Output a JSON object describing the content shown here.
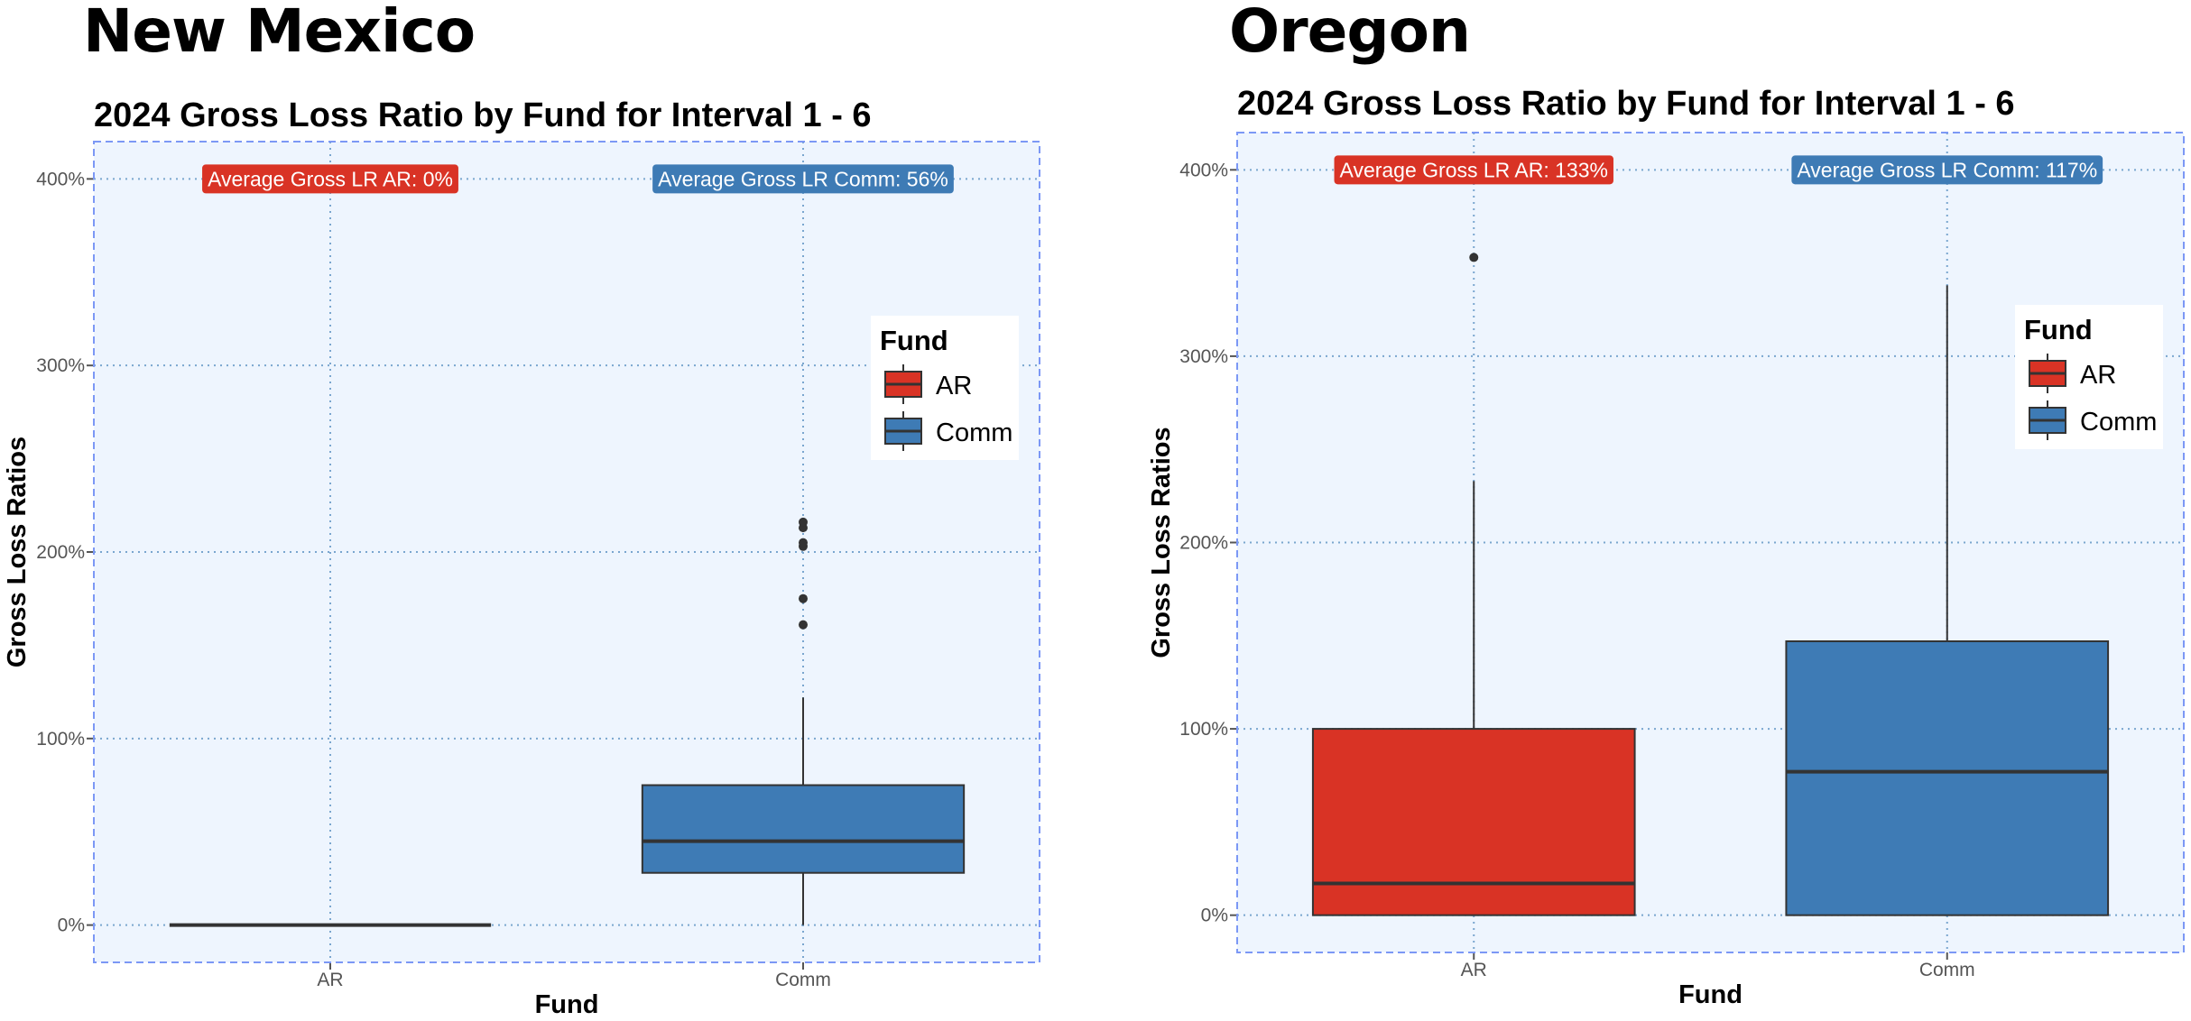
{
  "panels": [
    {
      "state": "New Mexico"
    },
    {
      "state": "Oregon"
    }
  ],
  "colors": {
    "AR": "#d93325",
    "Comm": "#3e7bb5",
    "panel_bg": "#eef5fe",
    "border": "#7c98f5",
    "grid": "#7aa6cf"
  },
  "chart_data": [
    {
      "type": "box",
      "title": "2024 Gross Loss Ratio by Fund for Interval 1 - 6",
      "xlabel": "Fund",
      "ylabel": "Gross Loss Ratios",
      "categories": [
        "AR",
        "Comm"
      ],
      "ylim": [
        -20,
        420
      ],
      "yticks": [
        0,
        100,
        200,
        300,
        400
      ],
      "ytick_labels": [
        "0%",
        "100%",
        "200%",
        "300%",
        "400%"
      ],
      "boxes": [
        {
          "name": "AR",
          "min": 0,
          "q1": 0,
          "median": 0,
          "q3": 0,
          "max": 0,
          "outliers": []
        },
        {
          "name": "Comm",
          "min": 0,
          "q1": 28,
          "median": 45,
          "q3": 75,
          "max": 122,
          "outliers": [
            161,
            175,
            203,
            205,
            213,
            216
          ]
        }
      ],
      "annotations": [
        {
          "category": "AR",
          "y": 400,
          "text": "Average Gross LR AR: 0%",
          "fill": "#d93325"
        },
        {
          "category": "Comm",
          "y": 400,
          "text": "Average Gross LR Comm: 56%",
          "fill": "#3e7bb5"
        }
      ],
      "legend": {
        "title": "Fund",
        "entries": [
          "AR",
          "Comm"
        ],
        "position": "right"
      },
      "grid": true
    },
    {
      "type": "box",
      "title": "2024 Gross Loss Ratio by Fund for Interval 1 - 6",
      "xlabel": "Fund",
      "ylabel": "Gross Loss Ratios",
      "categories": [
        "AR",
        "Comm"
      ],
      "ylim": [
        -20,
        420
      ],
      "yticks": [
        0,
        100,
        200,
        300,
        400
      ],
      "ytick_labels": [
        "0%",
        "100%",
        "200%",
        "300%",
        "400%"
      ],
      "boxes": [
        {
          "name": "AR",
          "min": 0,
          "q1": 0,
          "median": 17,
          "q3": 100,
          "max": 233,
          "outliers": [
            353
          ]
        },
        {
          "name": "Comm",
          "min": 0,
          "q1": 0,
          "median": 77,
          "q3": 147,
          "max": 338,
          "outliers": []
        }
      ],
      "annotations": [
        {
          "category": "AR",
          "y": 400,
          "text": "Average Gross LR AR: 133%",
          "fill": "#d93325"
        },
        {
          "category": "Comm",
          "y": 400,
          "text": "Average Gross LR Comm: 117%",
          "fill": "#3e7bb5"
        }
      ],
      "legend": {
        "title": "Fund",
        "entries": [
          "AR",
          "Comm"
        ],
        "position": "right"
      },
      "grid": true
    }
  ]
}
